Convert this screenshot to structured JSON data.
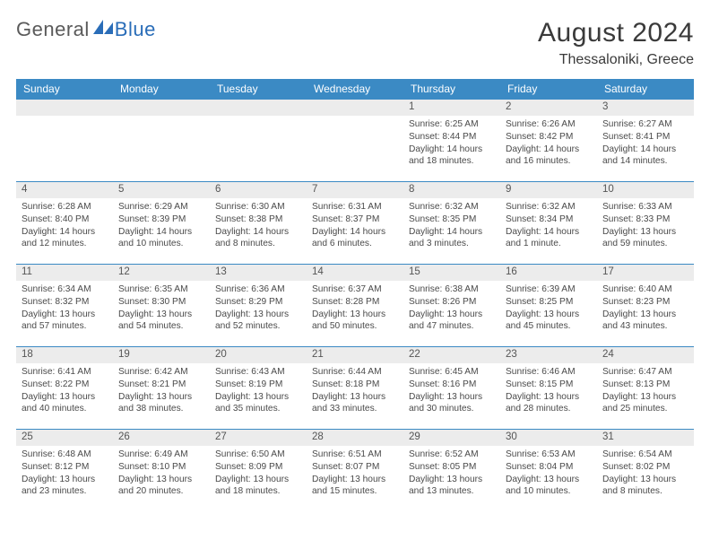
{
  "logo": {
    "text_gray": "General",
    "text_blue": "Blue"
  },
  "title": "August 2024",
  "location": "Thessaloniki, Greece",
  "colors": {
    "header_bg": "#3b8ac4",
    "header_text": "#ffffff",
    "daynum_bg": "#ececec",
    "body_text": "#4a4a4a",
    "border": "#3b8ac4",
    "logo_gray": "#5a5a5a",
    "logo_blue": "#2a6db8"
  },
  "days_of_week": [
    "Sunday",
    "Monday",
    "Tuesday",
    "Wednesday",
    "Thursday",
    "Friday",
    "Saturday"
  ],
  "weeks": [
    [
      null,
      null,
      null,
      null,
      {
        "n": "1",
        "sr": "Sunrise: 6:25 AM",
        "ss": "Sunset: 8:44 PM",
        "d1": "Daylight: 14 hours",
        "d2": "and 18 minutes."
      },
      {
        "n": "2",
        "sr": "Sunrise: 6:26 AM",
        "ss": "Sunset: 8:42 PM",
        "d1": "Daylight: 14 hours",
        "d2": "and 16 minutes."
      },
      {
        "n": "3",
        "sr": "Sunrise: 6:27 AM",
        "ss": "Sunset: 8:41 PM",
        "d1": "Daylight: 14 hours",
        "d2": "and 14 minutes."
      }
    ],
    [
      {
        "n": "4",
        "sr": "Sunrise: 6:28 AM",
        "ss": "Sunset: 8:40 PM",
        "d1": "Daylight: 14 hours",
        "d2": "and 12 minutes."
      },
      {
        "n": "5",
        "sr": "Sunrise: 6:29 AM",
        "ss": "Sunset: 8:39 PM",
        "d1": "Daylight: 14 hours",
        "d2": "and 10 minutes."
      },
      {
        "n": "6",
        "sr": "Sunrise: 6:30 AM",
        "ss": "Sunset: 8:38 PM",
        "d1": "Daylight: 14 hours",
        "d2": "and 8 minutes."
      },
      {
        "n": "7",
        "sr": "Sunrise: 6:31 AM",
        "ss": "Sunset: 8:37 PM",
        "d1": "Daylight: 14 hours",
        "d2": "and 6 minutes."
      },
      {
        "n": "8",
        "sr": "Sunrise: 6:32 AM",
        "ss": "Sunset: 8:35 PM",
        "d1": "Daylight: 14 hours",
        "d2": "and 3 minutes."
      },
      {
        "n": "9",
        "sr": "Sunrise: 6:32 AM",
        "ss": "Sunset: 8:34 PM",
        "d1": "Daylight: 14 hours",
        "d2": "and 1 minute."
      },
      {
        "n": "10",
        "sr": "Sunrise: 6:33 AM",
        "ss": "Sunset: 8:33 PM",
        "d1": "Daylight: 13 hours",
        "d2": "and 59 minutes."
      }
    ],
    [
      {
        "n": "11",
        "sr": "Sunrise: 6:34 AM",
        "ss": "Sunset: 8:32 PM",
        "d1": "Daylight: 13 hours",
        "d2": "and 57 minutes."
      },
      {
        "n": "12",
        "sr": "Sunrise: 6:35 AM",
        "ss": "Sunset: 8:30 PM",
        "d1": "Daylight: 13 hours",
        "d2": "and 54 minutes."
      },
      {
        "n": "13",
        "sr": "Sunrise: 6:36 AM",
        "ss": "Sunset: 8:29 PM",
        "d1": "Daylight: 13 hours",
        "d2": "and 52 minutes."
      },
      {
        "n": "14",
        "sr": "Sunrise: 6:37 AM",
        "ss": "Sunset: 8:28 PM",
        "d1": "Daylight: 13 hours",
        "d2": "and 50 minutes."
      },
      {
        "n": "15",
        "sr": "Sunrise: 6:38 AM",
        "ss": "Sunset: 8:26 PM",
        "d1": "Daylight: 13 hours",
        "d2": "and 47 minutes."
      },
      {
        "n": "16",
        "sr": "Sunrise: 6:39 AM",
        "ss": "Sunset: 8:25 PM",
        "d1": "Daylight: 13 hours",
        "d2": "and 45 minutes."
      },
      {
        "n": "17",
        "sr": "Sunrise: 6:40 AM",
        "ss": "Sunset: 8:23 PM",
        "d1": "Daylight: 13 hours",
        "d2": "and 43 minutes."
      }
    ],
    [
      {
        "n": "18",
        "sr": "Sunrise: 6:41 AM",
        "ss": "Sunset: 8:22 PM",
        "d1": "Daylight: 13 hours",
        "d2": "and 40 minutes."
      },
      {
        "n": "19",
        "sr": "Sunrise: 6:42 AM",
        "ss": "Sunset: 8:21 PM",
        "d1": "Daylight: 13 hours",
        "d2": "and 38 minutes."
      },
      {
        "n": "20",
        "sr": "Sunrise: 6:43 AM",
        "ss": "Sunset: 8:19 PM",
        "d1": "Daylight: 13 hours",
        "d2": "and 35 minutes."
      },
      {
        "n": "21",
        "sr": "Sunrise: 6:44 AM",
        "ss": "Sunset: 8:18 PM",
        "d1": "Daylight: 13 hours",
        "d2": "and 33 minutes."
      },
      {
        "n": "22",
        "sr": "Sunrise: 6:45 AM",
        "ss": "Sunset: 8:16 PM",
        "d1": "Daylight: 13 hours",
        "d2": "and 30 minutes."
      },
      {
        "n": "23",
        "sr": "Sunrise: 6:46 AM",
        "ss": "Sunset: 8:15 PM",
        "d1": "Daylight: 13 hours",
        "d2": "and 28 minutes."
      },
      {
        "n": "24",
        "sr": "Sunrise: 6:47 AM",
        "ss": "Sunset: 8:13 PM",
        "d1": "Daylight: 13 hours",
        "d2": "and 25 minutes."
      }
    ],
    [
      {
        "n": "25",
        "sr": "Sunrise: 6:48 AM",
        "ss": "Sunset: 8:12 PM",
        "d1": "Daylight: 13 hours",
        "d2": "and 23 minutes."
      },
      {
        "n": "26",
        "sr": "Sunrise: 6:49 AM",
        "ss": "Sunset: 8:10 PM",
        "d1": "Daylight: 13 hours",
        "d2": "and 20 minutes."
      },
      {
        "n": "27",
        "sr": "Sunrise: 6:50 AM",
        "ss": "Sunset: 8:09 PM",
        "d1": "Daylight: 13 hours",
        "d2": "and 18 minutes."
      },
      {
        "n": "28",
        "sr": "Sunrise: 6:51 AM",
        "ss": "Sunset: 8:07 PM",
        "d1": "Daylight: 13 hours",
        "d2": "and 15 minutes."
      },
      {
        "n": "29",
        "sr": "Sunrise: 6:52 AM",
        "ss": "Sunset: 8:05 PM",
        "d1": "Daylight: 13 hours",
        "d2": "and 13 minutes."
      },
      {
        "n": "30",
        "sr": "Sunrise: 6:53 AM",
        "ss": "Sunset: 8:04 PM",
        "d1": "Daylight: 13 hours",
        "d2": "and 10 minutes."
      },
      {
        "n": "31",
        "sr": "Sunrise: 6:54 AM",
        "ss": "Sunset: 8:02 PM",
        "d1": "Daylight: 13 hours",
        "d2": "and 8 minutes."
      }
    ]
  ]
}
